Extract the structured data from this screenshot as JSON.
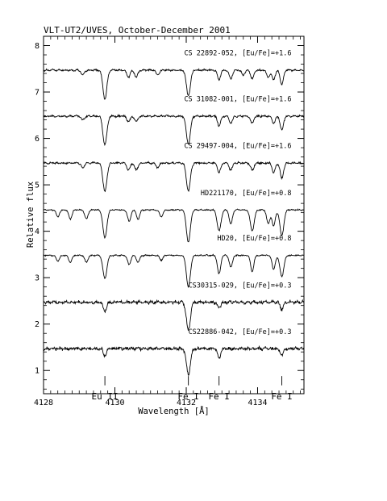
{
  "chart_data": {
    "type": "line",
    "title": "VLT-UT2/UVES, October-December 2001",
    "xlabel": "Wavelength [Å]",
    "ylabel": "Relative flux",
    "xlim": [
      4128,
      4135.3
    ],
    "ylim": [
      0.5,
      8.2
    ],
    "x_ticks": [
      4128,
      4130,
      4132,
      4134
    ],
    "y_ticks": [
      1,
      2,
      3,
      4,
      5,
      6,
      7,
      8
    ],
    "grid": false,
    "series": [
      {
        "name": "CS 22892-052, [Eu/Fe]=+1.6",
        "baseline": 7.47,
        "noise": 0.03,
        "lines": [
          [
            4129.72,
            0.62
          ],
          [
            4132.06,
            0.55
          ],
          [
            4130.38,
            0.15
          ],
          [
            4130.6,
            0.15
          ],
          [
            4129.1,
            0.1
          ],
          [
            4131.2,
            0.1
          ],
          [
            4132.92,
            0.2
          ],
          [
            4133.25,
            0.18
          ],
          [
            4133.6,
            0.1
          ],
          [
            4133.85,
            0.18
          ],
          [
            4134.3,
            0.15
          ],
          [
            4134.45,
            0.2
          ],
          [
            4134.68,
            0.32
          ]
        ]
      },
      {
        "name": "CS 31082-001, [Eu/Fe]=+1.6",
        "baseline": 6.48,
        "noise": 0.03,
        "lines": [
          [
            4129.72,
            0.62
          ],
          [
            4132.06,
            0.6
          ],
          [
            4130.38,
            0.12
          ],
          [
            4130.6,
            0.12
          ],
          [
            4129.1,
            0.08
          ],
          [
            4132.92,
            0.2
          ],
          [
            4133.25,
            0.15
          ],
          [
            4133.85,
            0.15
          ],
          [
            4134.45,
            0.15
          ],
          [
            4134.68,
            0.3
          ]
        ]
      },
      {
        "name": "CS 29497-004, [Eu/Fe]=+1.6",
        "baseline": 5.47,
        "noise": 0.03,
        "lines": [
          [
            4129.72,
            0.62
          ],
          [
            4132.06,
            0.6
          ],
          [
            4130.38,
            0.15
          ],
          [
            4130.6,
            0.15
          ],
          [
            4129.1,
            0.1
          ],
          [
            4131.2,
            0.1
          ],
          [
            4132.92,
            0.2
          ],
          [
            4133.25,
            0.15
          ],
          [
            4133.85,
            0.15
          ],
          [
            4134.45,
            0.2
          ],
          [
            4134.68,
            0.33
          ]
        ]
      },
      {
        "name": "HD221170, [Eu/Fe]=+0.8",
        "baseline": 4.46,
        "noise": 0.02,
        "lines": [
          [
            4129.72,
            0.6
          ],
          [
            4132.06,
            0.7
          ],
          [
            4128.4,
            0.15
          ],
          [
            4128.75,
            0.2
          ],
          [
            4129.2,
            0.2
          ],
          [
            4130.4,
            0.25
          ],
          [
            4130.65,
            0.2
          ],
          [
            4131.3,
            0.15
          ],
          [
            4132.92,
            0.45
          ],
          [
            4133.25,
            0.3
          ],
          [
            4133.85,
            0.45
          ],
          [
            4134.3,
            0.3
          ],
          [
            4134.45,
            0.35
          ],
          [
            4134.68,
            0.55
          ]
        ]
      },
      {
        "name": "HD20, [Eu/Fe]=+0.8",
        "baseline": 3.48,
        "noise": 0.02,
        "lines": [
          [
            4129.72,
            0.5
          ],
          [
            4132.06,
            0.68
          ],
          [
            4128.4,
            0.12
          ],
          [
            4128.75,
            0.15
          ],
          [
            4129.2,
            0.15
          ],
          [
            4130.4,
            0.2
          ],
          [
            4130.65,
            0.15
          ],
          [
            4131.3,
            0.1
          ],
          [
            4132.92,
            0.4
          ],
          [
            4133.25,
            0.25
          ],
          [
            4133.85,
            0.35
          ],
          [
            4134.45,
            0.3
          ],
          [
            4134.68,
            0.45
          ]
        ]
      },
      {
        "name": "CS30315-029, [Eu/Fe]=+0.3",
        "baseline": 2.47,
        "noise": 0.05,
        "lines": [
          [
            4129.72,
            0.2
          ],
          [
            4132.06,
            0.6
          ],
          [
            4132.92,
            0.12
          ],
          [
            4134.68,
            0.15
          ]
        ]
      },
      {
        "name": "CS22886-042, [Eu/Fe]=+0.3",
        "baseline": 1.47,
        "noise": 0.05,
        "lines": [
          [
            4129.72,
            0.15
          ],
          [
            4132.06,
            0.55
          ],
          [
            4132.92,
            0.2
          ],
          [
            4134.68,
            0.15
          ]
        ]
      }
    ],
    "line_markers": [
      {
        "label": "Eu II",
        "x": 4129.72
      },
      {
        "label": "Fe I",
        "x": 4132.06
      },
      {
        "label": "Fe I",
        "x": 4132.92
      },
      {
        "label": "Fe I",
        "x": 4134.68
      }
    ]
  }
}
